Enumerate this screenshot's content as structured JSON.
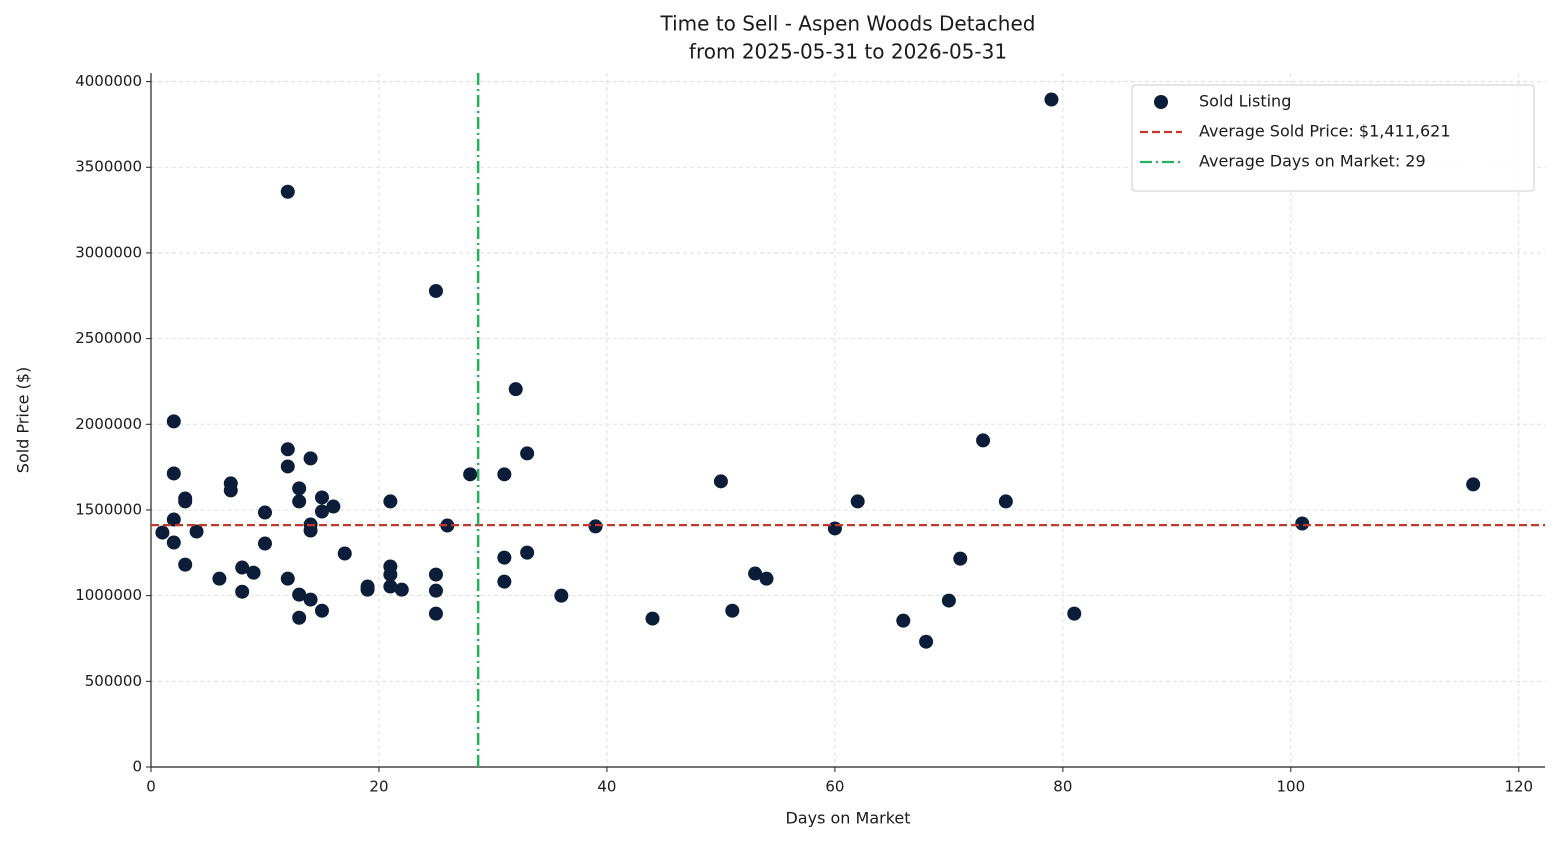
{
  "chart_data": {
    "type": "scatter",
    "title": "Time to Sell - Aspen Woods Detached",
    "subtitle": "from 2025-05-31 to 2026-05-31",
    "x_label": "Days on Market",
    "y_label": "Sold Price ($)",
    "xlim": [
      0,
      122.3
    ],
    "ylim": [
      0,
      4050000
    ],
    "xticks": [
      0,
      20,
      40,
      60,
      80,
      100,
      120
    ],
    "yticks": [
      0,
      500000,
      1000000,
      1500000,
      2000000,
      2500000,
      3000000,
      3500000,
      4000000
    ],
    "grid": true,
    "legend": "upper right",
    "series": [
      {
        "name": "Sold Listing",
        "color": "#0b1d38",
        "x": [
          1,
          2,
          2,
          2,
          2,
          3,
          3,
          3,
          4,
          6,
          7,
          7,
          8,
          8,
          9,
          10,
          10,
          12,
          12,
          12,
          12,
          13,
          13,
          13,
          13,
          14,
          14,
          14,
          14,
          15,
          15,
          15,
          16,
          17,
          19,
          19,
          21,
          21,
          21,
          21,
          22,
          25,
          25,
          25,
          25,
          26,
          28,
          31,
          31,
          31,
          32,
          33,
          33,
          36,
          39,
          44,
          50,
          51,
          53,
          54,
          60,
          62,
          66,
          68,
          70,
          71,
          73,
          75,
          79,
          81,
          101,
          116
        ],
        "values": [
          1368000,
          2017000,
          1713000,
          1444000,
          1310000,
          1567000,
          1550000,
          1181000,
          1374000,
          1099000,
          1655000,
          1614000,
          1164000,
          1023000,
          1134000,
          1485000,
          1304000,
          3357000,
          1854000,
          1754000,
          1099000,
          1626000,
          1550000,
          1006000,
          871000,
          1801000,
          1415000,
          1380000,
          977000,
          1573000,
          1491000,
          912000,
          1520000,
          1246000,
          1053000,
          1035000,
          1550000,
          1170000,
          1123000,
          1053000,
          1035000,
          2778000,
          1123000,
          1029000,
          895000,
          1409000,
          1708000,
          1708000,
          1222000,
          1082000,
          2205000,
          1830000,
          1251000,
          1000000,
          1404000,
          866000,
          1667000,
          912000,
          1129000,
          1099000,
          1392000,
          1550000,
          854000,
          731000,
          971000,
          1216000,
          1906000,
          1550000,
          3895000,
          895000,
          1421000,
          1649000
        ]
      }
    ],
    "hlines": [
      {
        "name": "Average Sold Price: $1,411,621",
        "value": 1411621,
        "color": "#c0392b"
      }
    ],
    "vlines": [
      {
        "name": "Average Days on Market: 29",
        "value": 28.7,
        "color": "#27ae60"
      }
    ]
  }
}
